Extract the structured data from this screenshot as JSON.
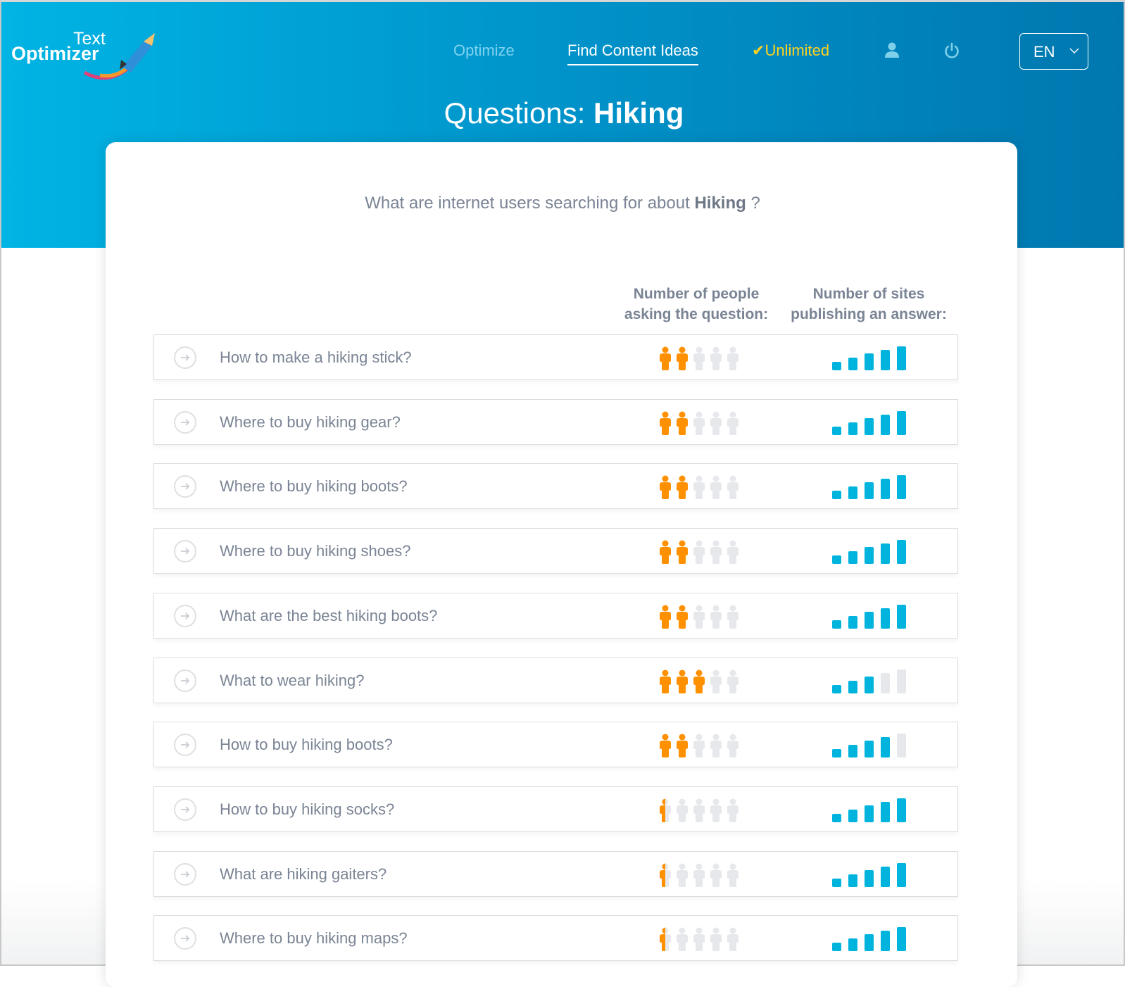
{
  "brand": {
    "logo_line1": "Text",
    "logo_line2": "Optimizer"
  },
  "nav": {
    "optimize": "Optimize",
    "find_content_ideas": "Find Content Ideas",
    "plan": "Unlimited",
    "plan_icon": "check-icon",
    "user_icon": "user-icon",
    "power_icon": "power-icon",
    "language": "EN"
  },
  "page": {
    "title_prefix": "Questions:",
    "title_keyword": "Hiking",
    "subtitle_prefix": "What are internet users searching for about",
    "subtitle_keyword": "Hiking",
    "subtitle_suffix": "?"
  },
  "columns": {
    "people_line1": "Number of people",
    "people_line2": "asking the question:",
    "sites_line1": "Number of sites",
    "sites_line2": "publishing an answer:"
  },
  "colors": {
    "people_active": "#ff9000",
    "inactive": "#e6e8eb",
    "bars_active": "#00b4dd",
    "header_start": "#00b4e4",
    "header_end": "#0077af"
  },
  "scale": {
    "people_max": 5,
    "sites_max": 5
  },
  "questions": [
    {
      "text": "How to make a hiking stick?",
      "people": 2,
      "sites": 5
    },
    {
      "text": "Where to buy hiking gear?",
      "people": 2,
      "sites": 5
    },
    {
      "text": "Where to buy hiking boots?",
      "people": 2,
      "sites": 5
    },
    {
      "text": "Where to buy hiking shoes?",
      "people": 2,
      "sites": 5
    },
    {
      "text": "What are the best hiking boots?",
      "people": 2,
      "sites": 5
    },
    {
      "text": "What to wear hiking?",
      "people": 3,
      "sites": 3
    },
    {
      "text": "How to buy hiking boots?",
      "people": 2,
      "sites": 4
    },
    {
      "text": "How to buy hiking socks?",
      "people": 0.5,
      "sites": 5
    },
    {
      "text": "What are hiking gaiters?",
      "people": 0.5,
      "sites": 5
    },
    {
      "text": "Where to buy hiking maps?",
      "people": 0.5,
      "sites": 5
    }
  ]
}
